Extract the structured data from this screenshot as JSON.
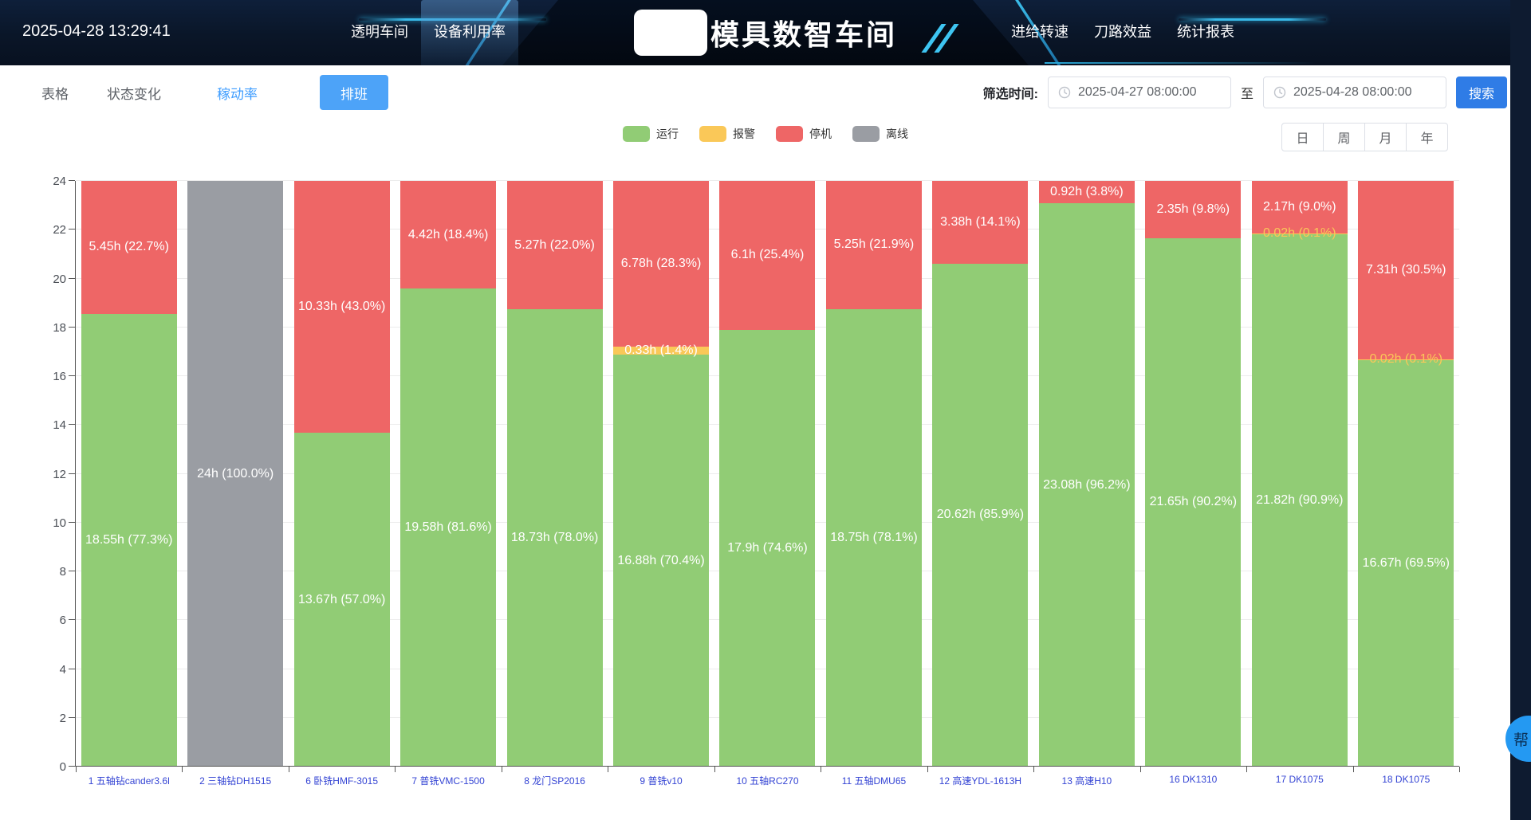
{
  "header": {
    "datetime": "2025-04-28 13:29:41",
    "title": "模具数智车间",
    "nav_left": [
      {
        "label": "透明车间",
        "active": false
      },
      {
        "label": "设备利用率",
        "active": true
      }
    ],
    "nav_right": [
      {
        "label": "进给转速"
      },
      {
        "label": "刀路效益"
      },
      {
        "label": "统计报表"
      }
    ]
  },
  "toolbar": {
    "tabs": [
      {
        "label": "表格",
        "active": false
      },
      {
        "label": "状态变化",
        "active": false
      },
      {
        "label": "稼动率",
        "active": true
      }
    ],
    "schedule_button": "排班",
    "filter_label": "筛选时间:",
    "start_time": "2025-04-27 08:00:00",
    "to_label": "至",
    "end_time": "2025-04-28 08:00:00",
    "search_button": "搜索"
  },
  "period": {
    "options": [
      "日",
      "周",
      "月",
      "年"
    ]
  },
  "legend": {
    "items": [
      {
        "label": "运行",
        "color": "#91cc75"
      },
      {
        "label": "报警",
        "color": "#fac858"
      },
      {
        "label": "停机",
        "color": "#ee6666"
      },
      {
        "label": "离线",
        "color": "#9a9da3"
      }
    ]
  },
  "help_button": "帮",
  "chart_data": {
    "type": "bar",
    "stacked": true,
    "ylim": [
      0,
      24
    ],
    "ytick_step": 2,
    "grid": true,
    "unit": "h",
    "series_names": [
      "运行",
      "报警",
      "停机",
      "离线"
    ],
    "categories": [
      "1 五轴钻cander3.6l",
      "2 三轴钻DH1515",
      "6 卧铣HMF-3015",
      "7 普铣VMC-1500",
      "8 龙门SP2016",
      "9 普铣v10",
      "10 五轴RC270",
      "11 五轴DMU65",
      "12 高速YDL-1613H",
      "13 高速H10",
      "16 DK1310",
      "17 DK1075",
      "18 DK1075"
    ],
    "bars": [
      {
        "category": "1 五轴钻cander3.6l",
        "segments": [
          {
            "series": "运行",
            "hours": 18.55,
            "label": "18.55h (77.3%)"
          },
          {
            "series": "停机",
            "hours": 5.45,
            "label": "5.45h (22.7%)"
          }
        ]
      },
      {
        "category": "2 三轴钻DH1515",
        "segments": [
          {
            "series": "离线",
            "hours": 24,
            "label": "24h (100.0%)"
          }
        ]
      },
      {
        "category": "6 卧铣HMF-3015",
        "segments": [
          {
            "series": "运行",
            "hours": 13.67,
            "label": "13.67h (57.0%)"
          },
          {
            "series": "停机",
            "hours": 10.33,
            "label": "10.33h (43.0%)"
          }
        ]
      },
      {
        "category": "7 普铣VMC-1500",
        "segments": [
          {
            "series": "运行",
            "hours": 19.58,
            "label": "19.58h (81.6%)"
          },
          {
            "series": "停机",
            "hours": 4.42,
            "label": "4.42h (18.4%)"
          }
        ]
      },
      {
        "category": "8 龙门SP2016",
        "segments": [
          {
            "series": "运行",
            "hours": 18.73,
            "label": "18.73h (78.0%)"
          },
          {
            "series": "停机",
            "hours": 5.27,
            "label": "5.27h (22.0%)"
          }
        ]
      },
      {
        "category": "9 普铣v10",
        "segments": [
          {
            "series": "运行",
            "hours": 16.88,
            "label": "16.88h (70.4%)"
          },
          {
            "series": "报警",
            "hours": 0.33,
            "label": "0.33h (1.4%)"
          },
          {
            "series": "停机",
            "hours": 6.78,
            "label": "6.78h (28.3%)"
          }
        ]
      },
      {
        "category": "10 五轴RC270",
        "segments": [
          {
            "series": "运行",
            "hours": 17.9,
            "label": "17.9h (74.6%)"
          },
          {
            "series": "停机",
            "hours": 6.1,
            "label": "6.1h (25.4%)"
          }
        ]
      },
      {
        "category": "11 五轴DMU65",
        "segments": [
          {
            "series": "运行",
            "hours": 18.75,
            "label": "18.75h (78.1%)"
          },
          {
            "series": "停机",
            "hours": 5.25,
            "label": "5.25h (21.9%)"
          }
        ]
      },
      {
        "category": "12 高速YDL-1613H",
        "segments": [
          {
            "series": "运行",
            "hours": 20.62,
            "label": "20.62h (85.9%)"
          },
          {
            "series": "停机",
            "hours": 3.38,
            "label": "3.38h (14.1%)"
          }
        ]
      },
      {
        "category": "13 高速H10",
        "segments": [
          {
            "series": "运行",
            "hours": 23.08,
            "label": "23.08h (96.2%)"
          },
          {
            "series": "停机",
            "hours": 0.92,
            "label": "0.92h (3.8%)"
          }
        ]
      },
      {
        "category": "16 DK1310",
        "segments": [
          {
            "series": "运行",
            "hours": 21.65,
            "label": "21.65h (90.2%)"
          },
          {
            "series": "停机",
            "hours": 2.35,
            "label": "2.35h (9.8%)"
          }
        ]
      },
      {
        "category": "17 DK1075",
        "segments": [
          {
            "series": "运行",
            "hours": 21.82,
            "label": "21.82h (90.9%)"
          },
          {
            "series": "报警",
            "hours": 0.02,
            "label": "0.02h (0.1%)",
            "label_color": "#fac858"
          },
          {
            "series": "停机",
            "hours": 2.17,
            "label": "2.17h (9.0%)"
          }
        ]
      },
      {
        "category": "18 DK1075",
        "segments": [
          {
            "series": "运行",
            "hours": 16.67,
            "label": "16.67h (69.5%)"
          },
          {
            "series": "报警",
            "hours": 0.02,
            "label": "0.02h (0.1%)",
            "label_color": "#fac858"
          },
          {
            "series": "停机",
            "hours": 7.31,
            "label": "7.31h (30.5%)"
          }
        ]
      }
    ]
  }
}
